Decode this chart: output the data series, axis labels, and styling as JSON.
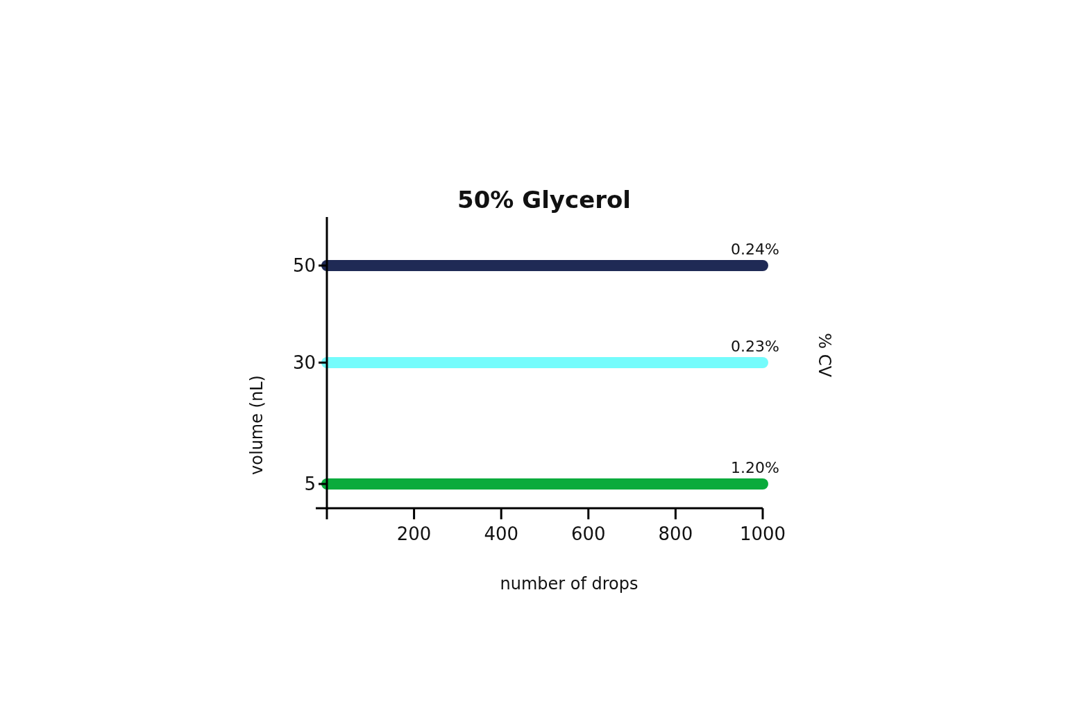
{
  "chart_data": {
    "type": "line",
    "title": "50% Glycerol",
    "xlabel": "number of drops",
    "ylabel": "volume (nL)",
    "y2label": "% CV",
    "x": [
      0,
      1000
    ],
    "series": [
      {
        "color": "#1f2a55",
        "values": [
          50,
          50
        ]
      },
      {
        "color": "#74fcfc",
        "values": [
          30,
          30
        ]
      },
      {
        "color": "#0aab3c",
        "values": [
          5,
          5
        ]
      }
    ],
    "xlim": [
      0,
      1000
    ],
    "xticks": [
      {
        "value": 0,
        "label": null
      },
      200,
      400,
      600,
      800,
      1000
    ],
    "ylim": [
      0,
      60
    ],
    "yticks": [
      5,
      30,
      50
    ],
    "grid": false,
    "marker": "none",
    "line_style": "solid",
    "annotations": [
      "0.24%",
      "0.23%",
      "1.20%"
    ]
  }
}
